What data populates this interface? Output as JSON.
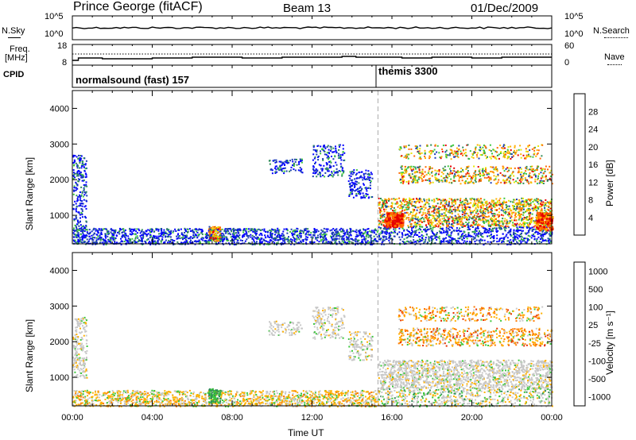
{
  "header": {
    "site": "Prince George (fitACF)",
    "beam": "Beam 13",
    "date": "01/Dec/2009"
  },
  "strip_labels": {
    "nsky": "N.Sky",
    "nsearch": "N.Search",
    "freq_top": "Freq.",
    "freq_unit": "[MHz]",
    "nave": "Nave",
    "cpid": "CPID",
    "nsky_ticks": [
      "10^5",
      "10^0"
    ],
    "nsearch_ticks": [
      "10^5",
      "10^0"
    ],
    "freq_ticks": [
      "18",
      "8"
    ],
    "nave_ticks": [
      "60",
      "0"
    ]
  },
  "cpid": {
    "modes": [
      {
        "label": "normalsound (fast) 157",
        "start_hour": 0,
        "end_hour": 15.3
      },
      {
        "label": "themis 3300",
        "start_hour": 15.3,
        "end_hour": 24
      }
    ]
  },
  "chart_data": [
    {
      "type": "heatmap",
      "name": "power-panel",
      "ylabel": "Slant Range [km]",
      "xlabel": "Time UT",
      "ylim": [
        200,
        4500
      ],
      "xlim_hours": [
        0,
        24
      ],
      "y_ticks": [
        "1000",
        "2000",
        "3000",
        "4000"
      ],
      "colorbar": {
        "label": "Power [dB]",
        "ticks": [
          "28",
          "24",
          "20",
          "16",
          "12",
          "8",
          "4"
        ],
        "colors": [
          "#e60000",
          "#ff6a00",
          "#ffb000",
          "#e6e600",
          "#3cc83c",
          "#2e8b57",
          "#1a3cb4",
          "#0000ff"
        ]
      },
      "vertical_marker_hour": 15.3
    },
    {
      "type": "heatmap",
      "name": "velocity-panel",
      "ylabel": "Slant Range [km]",
      "xlabel": "Time UT",
      "ylim": [
        200,
        4500
      ],
      "xlim_hours": [
        0,
        24
      ],
      "y_ticks": [
        "1000",
        "2000",
        "3000",
        "4000"
      ],
      "colorbar": {
        "label": "Velocity [m s⁻¹]",
        "ticks": [
          "1000",
          "500",
          "100",
          "25",
          "-25",
          "-100",
          "-500",
          "-1000"
        ],
        "colors": [
          "#1e3cb4",
          "#2e8b57",
          "#3cc83c",
          "#c8c8c8",
          "#ffb000",
          "#ff7a00",
          "#e63000",
          "#ff0000"
        ]
      },
      "vertical_marker_hour": 15.3
    }
  ],
  "x_axis": {
    "ticks": [
      "00:00",
      "04:00",
      "08:00",
      "12:00",
      "16:00",
      "20:00",
      "00:00"
    ],
    "label": "Time UT"
  }
}
